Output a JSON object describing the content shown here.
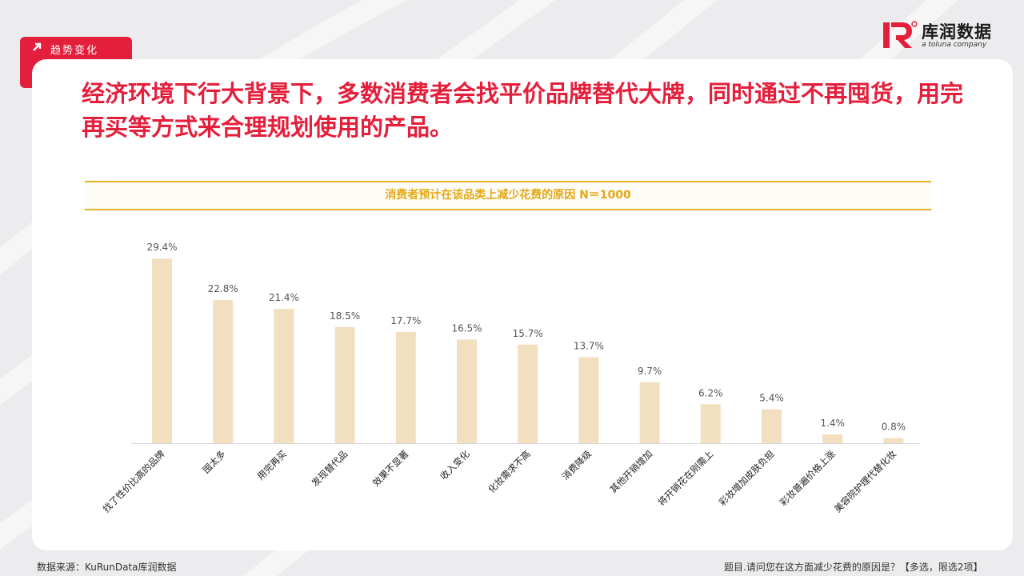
{
  "header": {
    "section_tag": "趋势变化",
    "headline": "经济环境下行大背景下，多数消费者会找平价品牌替代大牌，同时通过不再囤货，用完再买等方式来合理规划使用的产品。"
  },
  "logo": {
    "name": "库润数据",
    "tagline": "a toluna company",
    "mark_color": "#e41f3c"
  },
  "footer": {
    "source": "数据来源：KuRunData库润数据",
    "question": "题目.请问您在这方面减少花费的原因是？【多选，限选2项】"
  },
  "colors": {
    "accent": "#e41f3c",
    "bar": "#f2dfc0",
    "title_gold": "#e4a817"
  },
  "chart_data": {
    "type": "bar",
    "title": "消费者预计在该品类上减少花费的原因 N＝1000",
    "categories": [
      "找了性价比高的品牌",
      "囤太多",
      "用完再买",
      "发现替代品",
      "效果不显著",
      "收入变化",
      "化妆需求不高",
      "消费降级",
      "其他开销增加",
      "将开销花在刚需上",
      "彩妆增加皮肤负担",
      "彩妆普遍价格上涨",
      "美容院护理代替化妆"
    ],
    "values": [
      29.4,
      22.8,
      21.4,
      18.5,
      17.7,
      16.5,
      15.7,
      13.7,
      9.7,
      6.2,
      5.4,
      1.4,
      0.8
    ],
    "labels": [
      "29.4%",
      "22.8%",
      "21.4%",
      "18.5%",
      "17.7%",
      "16.5%",
      "15.7%",
      "13.7%",
      "9.7%",
      "6.2%",
      "5.4%",
      "1.4%",
      "0.8%"
    ],
    "unit": "%",
    "xlabel": "",
    "ylabel": "",
    "ylim": [
      0,
      30
    ],
    "grid": false,
    "legend": "none"
  }
}
